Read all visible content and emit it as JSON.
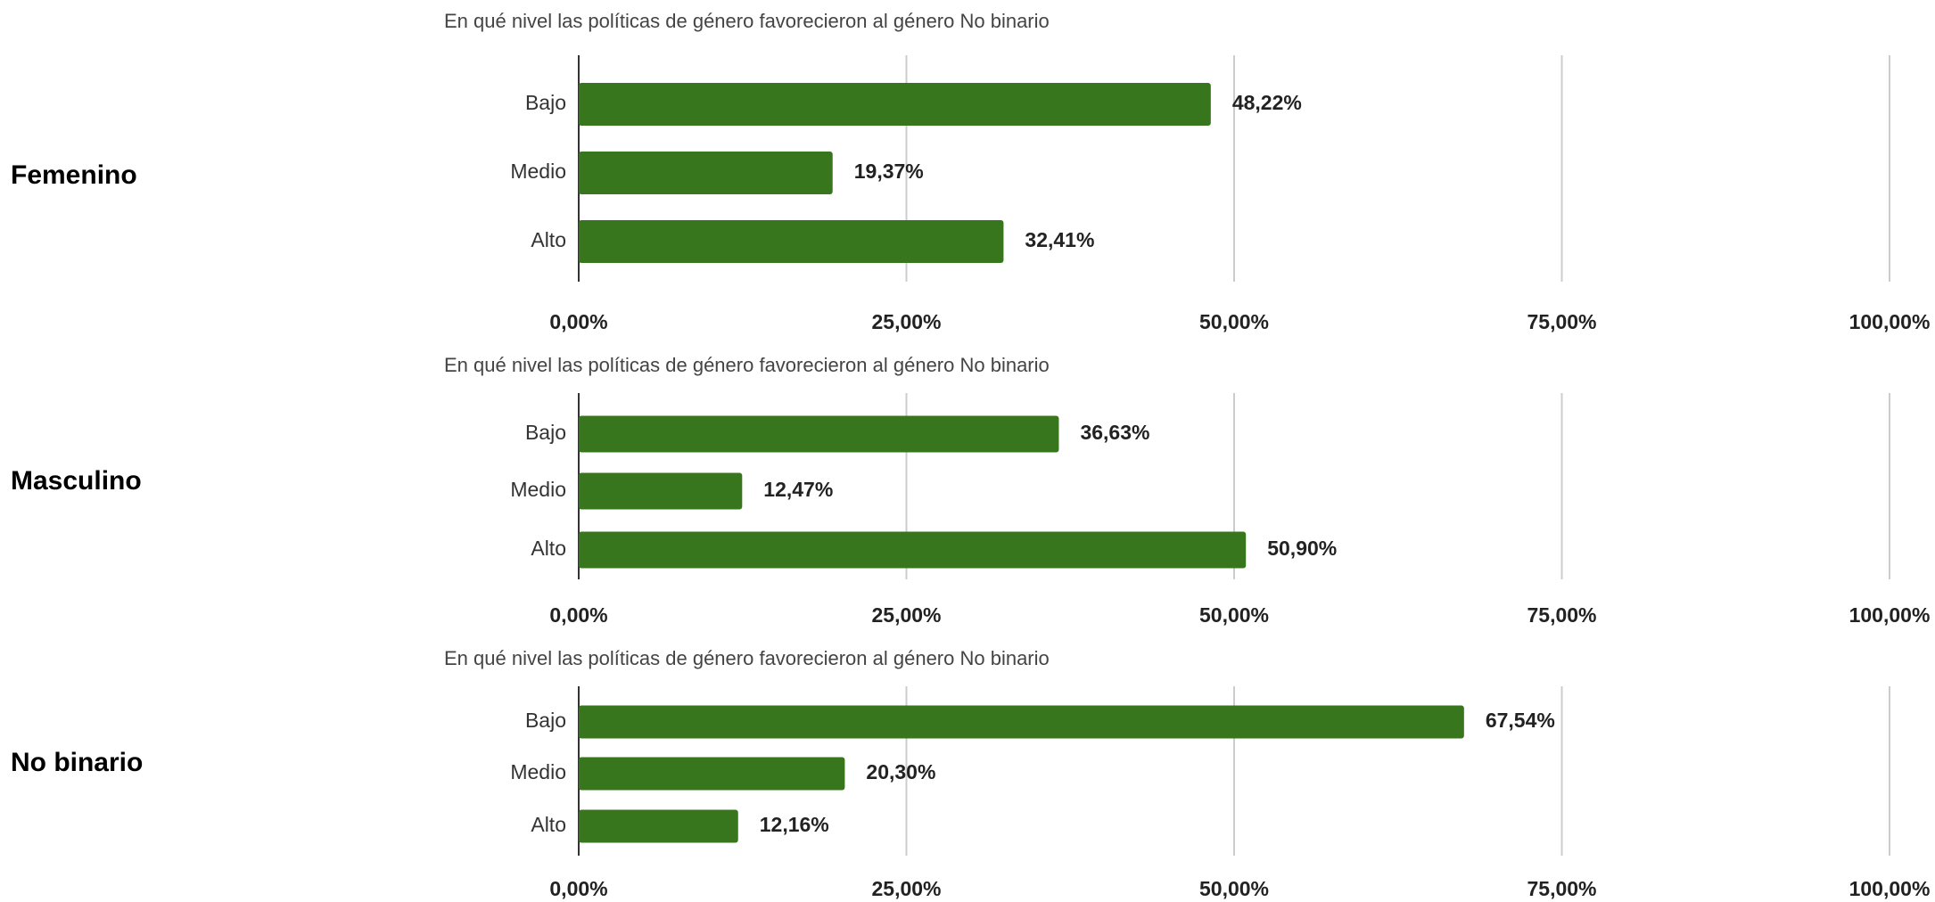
{
  "chart_data": [
    {
      "type": "bar",
      "orientation": "horizontal",
      "group": "Femenino",
      "title": "En qué nivel las políticas de género favorecieron al género No binario",
      "categories": [
        "Bajo",
        "Medio",
        "Alto"
      ],
      "values": [
        48.22,
        19.37,
        32.41
      ],
      "value_labels": [
        "48,22%",
        "19,37%",
        "32,41%"
      ],
      "color": "#38761d",
      "xlim": [
        0,
        100
      ],
      "xticks": [
        {
          "value": 0,
          "label": "0,00%"
        },
        {
          "value": 25,
          "label": "25,00%"
        },
        {
          "value": 50,
          "label": "50,00%"
        },
        {
          "value": 75,
          "label": "75,00%"
        },
        {
          "value": 100,
          "label": "100,00%"
        }
      ],
      "grid": true
    },
    {
      "type": "bar",
      "orientation": "horizontal",
      "group": "Masculino",
      "title": "En qué nivel las políticas de género favorecieron al género No binario",
      "categories": [
        "Bajo",
        "Medio",
        "Alto"
      ],
      "values": [
        36.63,
        12.47,
        50.9
      ],
      "value_labels": [
        "36,63%",
        "12,47%",
        "50,90%"
      ],
      "color": "#38761d",
      "xlim": [
        0,
        100
      ],
      "xticks": [
        {
          "value": 0,
          "label": "0,00%"
        },
        {
          "value": 25,
          "label": "25,00%"
        },
        {
          "value": 50,
          "label": "50,00%"
        },
        {
          "value": 75,
          "label": "75,00%"
        },
        {
          "value": 100,
          "label": "100,00%"
        }
      ],
      "grid": true
    },
    {
      "type": "bar",
      "orientation": "horizontal",
      "group": "No binario",
      "title": "En qué nivel las políticas de género favorecieron al género No binario",
      "categories": [
        "Bajo",
        "Medio",
        "Alto"
      ],
      "values": [
        67.54,
        20.3,
        12.16
      ],
      "value_labels": [
        "67,54%",
        "20,30%",
        "12,16%"
      ],
      "color": "#38761d",
      "xlim": [
        0,
        100
      ],
      "xticks": [
        {
          "value": 0,
          "label": "0,00%"
        },
        {
          "value": 25,
          "label": "25,00%"
        },
        {
          "value": 50,
          "label": "50,00%"
        },
        {
          "value": 75,
          "label": "75,00%"
        },
        {
          "value": 100,
          "label": "100,00%"
        }
      ],
      "grid": true
    }
  ]
}
